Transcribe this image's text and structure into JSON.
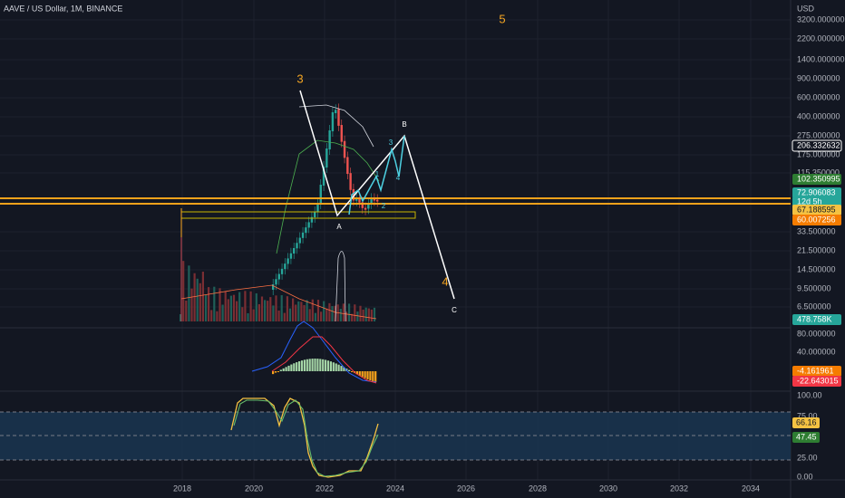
{
  "header": {
    "title": "AAVE / US Dollar, 1M, BINANCE"
  },
  "price_axis": {
    "labels": [
      "USD",
      "3200.000000",
      "2200.000000",
      "1400.000000",
      "900.000000",
      "600.000000",
      "400.000000",
      "275.000000",
      "175.000000",
      "115.350000",
      "33.500000",
      "21.500000",
      "14.500000",
      "9.500000",
      "6.500000"
    ]
  },
  "price_badges": [
    {
      "label": "206.332632"
    },
    {
      "label": "102.350995"
    },
    {
      "label": "72.906083"
    },
    {
      "label": "12d 5h"
    },
    {
      "label": "67.188595"
    },
    {
      "label": "60.007256"
    },
    {
      "label": "478.758K"
    }
  ],
  "macd_axis": {
    "labels": [
      "80.000000",
      "40.000000"
    ]
  },
  "macd_badges": [
    {
      "label": "-4.161961"
    },
    {
      "label": "-22.643015"
    }
  ],
  "stoch_axis": {
    "labels": [
      "100.00",
      "75.00",
      "25.00",
      "0.00"
    ]
  },
  "stoch_badges": [
    {
      "label": "66.16"
    },
    {
      "label": "47.45"
    }
  ],
  "time_axis": {
    "labels": [
      "2018",
      "2020",
      "2022",
      "2024",
      "2026",
      "2028",
      "2030",
      "2032",
      "2034"
    ]
  },
  "wave_labels": [
    "5",
    "3",
    "4",
    "B",
    "A",
    "C",
    "1",
    "2",
    "3",
    "4"
  ]
}
